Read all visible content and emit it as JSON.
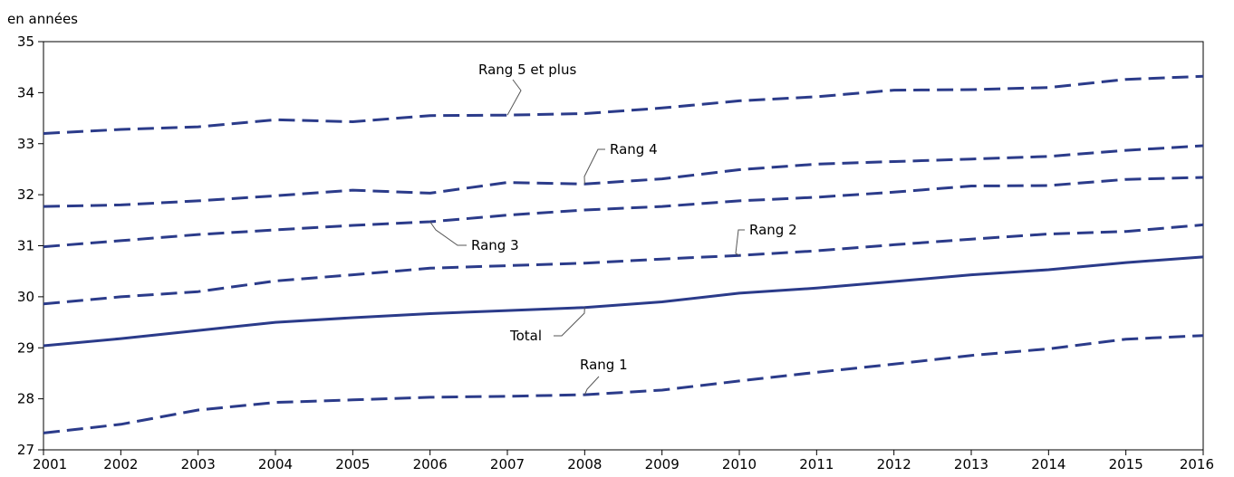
{
  "chart_data": {
    "type": "line",
    "title": "",
    "xlabel": "",
    "ylabel": "en années",
    "ylim": [
      27,
      35
    ],
    "xlim": [
      2001,
      2016
    ],
    "yticks": [
      27,
      28,
      29,
      30,
      31,
      32,
      33,
      34,
      35
    ],
    "grid": false,
    "legend": "none",
    "x": [
      2001,
      2002,
      2003,
      2004,
      2005,
      2006,
      2007,
      2008,
      2009,
      2010,
      2011,
      2012,
      2013,
      2014,
      2015,
      2016
    ],
    "series": [
      {
        "name": "Rang 5 et plus",
        "style": "dashed",
        "color": "#2b3b8a",
        "values": [
          33.2,
          33.28,
          33.33,
          33.47,
          33.43,
          33.55,
          33.56,
          33.59,
          33.7,
          33.84,
          33.92,
          34.05,
          34.06,
          34.1,
          34.26,
          34.32
        ]
      },
      {
        "name": "Rang 4",
        "style": "dashed",
        "color": "#2b3b8a",
        "values": [
          31.77,
          31.8,
          31.88,
          31.98,
          32.09,
          32.03,
          32.24,
          32.21,
          32.31,
          32.49,
          32.6,
          32.65,
          32.7,
          32.75,
          32.87,
          32.96
        ]
      },
      {
        "name": "Rang 3",
        "style": "dashed",
        "color": "#2b3b8a",
        "values": [
          30.98,
          31.1,
          31.22,
          31.31,
          31.4,
          31.47,
          31.6,
          31.7,
          31.77,
          31.88,
          31.95,
          32.05,
          32.17,
          32.18,
          32.3,
          32.34
        ]
      },
      {
        "name": "Rang 2",
        "style": "dashed",
        "color": "#2b3b8a",
        "values": [
          29.86,
          30.0,
          30.1,
          30.31,
          30.43,
          30.56,
          30.61,
          30.66,
          30.74,
          30.81,
          30.9,
          31.02,
          31.13,
          31.23,
          31.28,
          31.41
        ]
      },
      {
        "name": "Total",
        "style": "solid",
        "color": "#2b3b8a",
        "values": [
          29.04,
          29.18,
          29.34,
          29.5,
          29.59,
          29.67,
          29.73,
          29.79,
          29.9,
          30.07,
          30.17,
          30.3,
          30.43,
          30.53,
          30.67,
          30.78
        ]
      },
      {
        "name": "Rang 1",
        "style": "dashed",
        "color": "#2b3b8a",
        "values": [
          27.33,
          27.5,
          27.78,
          27.93,
          27.98,
          28.03,
          28.05,
          28.08,
          28.17,
          28.35,
          28.52,
          28.68,
          28.85,
          28.98,
          29.17,
          29.24
        ]
      }
    ]
  }
}
